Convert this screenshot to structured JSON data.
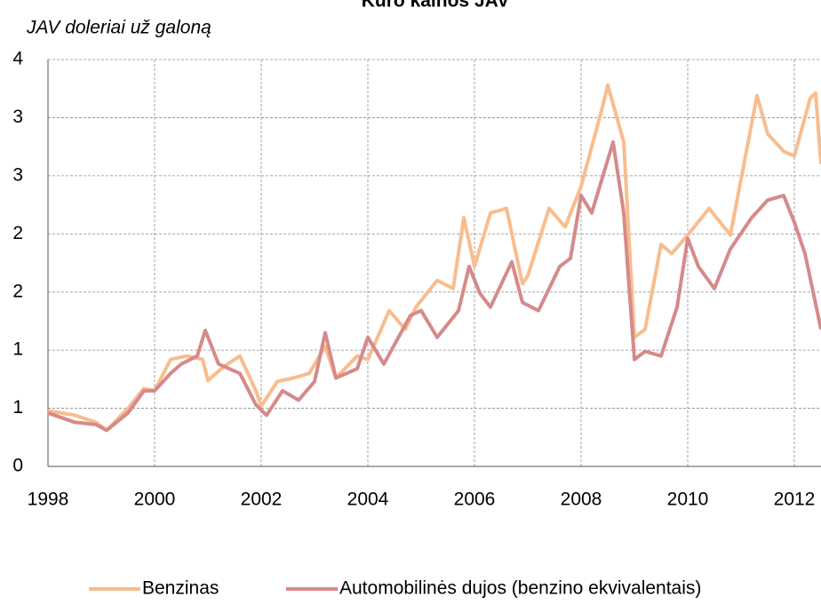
{
  "chart_data": {
    "type": "line",
    "title": "Kuro kainos JAV",
    "ylabel": "JAV doleriai už galoną",
    "xlim": [
      1998,
      2012.5
    ],
    "xticks": [
      1998,
      2000,
      2002,
      2004,
      2006,
      2008,
      2010,
      2012
    ],
    "ylim": [
      0,
      3.5
    ],
    "yticks": [
      0,
      {
        "value": 0.5,
        "label": "1"
      },
      1,
      {
        "value": 1.5,
        "label": "2"
      },
      2,
      {
        "value": 2.5,
        "label": "3"
      },
      3,
      {
        "value": 3.5,
        "label": "4"
      }
    ],
    "grid": true,
    "legend": "bottom",
    "series": [
      {
        "name": "Benzinas",
        "color": "#f8bd8e",
        "x": [
          1998.0,
          1998.5,
          1998.9,
          1999.1,
          1999.5,
          1999.8,
          2000.0,
          2000.3,
          2000.6,
          2000.9,
          2001.0,
          2001.3,
          2001.6,
          2001.9,
          2002.0,
          2002.3,
          2002.6,
          2002.9,
          2003.2,
          2003.4,
          2003.8,
          2004.0,
          2004.4,
          2004.7,
          2004.9,
          2005.3,
          2005.6,
          2005.8,
          2006.0,
          2006.3,
          2006.6,
          2006.9,
          2007.0,
          2007.4,
          2007.7,
          2008.0,
          2008.4,
          2008.5,
          2008.8,
          2009.0,
          2009.2,
          2009.5,
          2009.7,
          2010.0,
          2010.4,
          2010.8,
          2011.3,
          2011.5,
          2011.8,
          2012.0,
          2012.3,
          2012.4,
          2012.5
        ],
        "values": [
          0.48,
          0.44,
          0.38,
          0.31,
          0.5,
          0.67,
          0.65,
          0.92,
          0.95,
          0.92,
          0.74,
          0.86,
          0.95,
          0.65,
          0.52,
          0.73,
          0.76,
          0.8,
          1.03,
          0.76,
          0.95,
          0.92,
          1.34,
          1.18,
          1.37,
          1.6,
          1.53,
          2.14,
          1.72,
          2.18,
          2.22,
          1.57,
          1.64,
          2.22,
          2.06,
          2.41,
          3.09,
          3.28,
          2.79,
          1.11,
          1.18,
          1.91,
          1.83,
          1.99,
          2.22,
          1.99,
          3.19,
          2.86,
          2.71,
          2.67,
          3.17,
          3.21,
          2.6
        ]
      },
      {
        "name": "Automobilinės dujos (benzino ekvivalentais)",
        "color": "#d58a8a",
        "x": [
          1998.0,
          1998.5,
          1998.9,
          1999.1,
          1999.5,
          1999.8,
          2000.0,
          2000.3,
          2000.5,
          2000.8,
          2000.95,
          2001.2,
          2001.6,
          2001.9,
          2002.1,
          2002.4,
          2002.7,
          2003.0,
          2003.2,
          2003.4,
          2003.8,
          2004.0,
          2004.3,
          2004.8,
          2005.0,
          2005.3,
          2005.7,
          2005.9,
          2006.1,
          2006.3,
          2006.7,
          2006.9,
          2007.2,
          2007.6,
          2007.8,
          2008.0,
          2008.2,
          2008.6,
          2008.8,
          2009.0,
          2009.2,
          2009.5,
          2009.8,
          2010.0,
          2010.2,
          2010.5,
          2010.8,
          2011.2,
          2011.5,
          2011.8,
          2012.0,
          2012.2,
          2012.5
        ],
        "values": [
          0.46,
          0.38,
          0.36,
          0.31,
          0.46,
          0.65,
          0.65,
          0.8,
          0.88,
          0.95,
          1.17,
          0.88,
          0.8,
          0.53,
          0.44,
          0.65,
          0.57,
          0.73,
          1.15,
          0.76,
          0.84,
          1.11,
          0.88,
          1.3,
          1.34,
          1.11,
          1.34,
          1.72,
          1.49,
          1.37,
          1.76,
          1.41,
          1.34,
          1.72,
          1.79,
          2.33,
          2.18,
          2.79,
          2.18,
          0.92,
          0.99,
          0.95,
          1.37,
          1.96,
          1.72,
          1.53,
          1.87,
          2.14,
          2.29,
          2.33,
          2.1,
          1.83,
          1.18
        ]
      }
    ]
  }
}
